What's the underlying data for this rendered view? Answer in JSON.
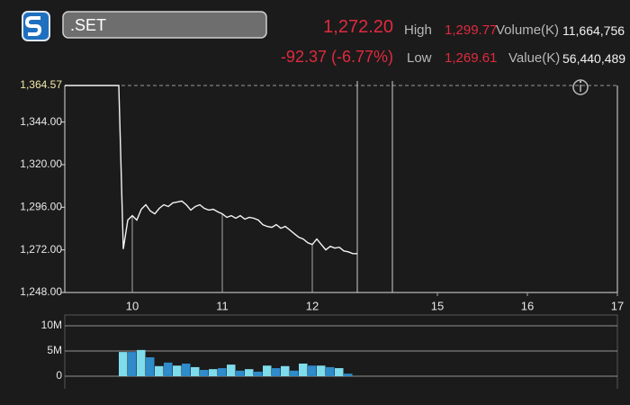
{
  "header": {
    "symbol": ".SET",
    "last": "1,272.20",
    "change": "-92.37 (-6.77%)",
    "high_label": "High",
    "high": "1,299.77",
    "low_label": "Low",
    "low": "1,269.61",
    "volume_label": "Volume(K)",
    "volume": "11,664,756",
    "value_label": "Value(K)",
    "value": "56,440,489"
  },
  "chart_data": [
    {
      "type": "line",
      "color": "#f4f4f4",
      "x": [
        9.25,
        9.85,
        9.9,
        9.95,
        10.0,
        10.05,
        10.1,
        10.15,
        10.2,
        10.25,
        10.3,
        10.35,
        10.4,
        10.45,
        10.5,
        10.55,
        10.6,
        10.65,
        10.7,
        10.75,
        10.8,
        10.85,
        10.9,
        10.95,
        11.0,
        11.05,
        11.1,
        11.15,
        11.2,
        11.25,
        11.3,
        11.35,
        11.4,
        11.45,
        11.5,
        11.55,
        11.6,
        11.65,
        11.7,
        11.75,
        11.8,
        11.85,
        11.9,
        11.95,
        12.0,
        12.05,
        12.1,
        12.15,
        12.2,
        12.25,
        12.3,
        12.35,
        12.4,
        12.45,
        12.5
      ],
      "values": [
        1364.57,
        1364.57,
        1272.5,
        1288.8,
        1291.3,
        1288.8,
        1294.9,
        1297.4,
        1293.9,
        1292.3,
        1295.4,
        1297.4,
        1296.4,
        1298.5,
        1299.0,
        1299.5,
        1297.4,
        1294.4,
        1296.4,
        1297.4,
        1295.4,
        1294.4,
        1294.9,
        1293.4,
        1292.3,
        1290.3,
        1291.3,
        1289.8,
        1291.3,
        1289.3,
        1290.3,
        1289.8,
        1288.8,
        1286.2,
        1285.2,
        1284.7,
        1286.2,
        1284.2,
        1285.2,
        1283.2,
        1281.1,
        1279.1,
        1278.1,
        1276.0,
        1275.0,
        1278.1,
        1275.0,
        1272.0,
        1274.0,
        1273.0,
        1273.5,
        1271.4,
        1270.9,
        1269.9,
        1269.9
      ],
      "reference": {
        "value": 1364.57,
        "label": "1,364.57"
      },
      "xlim": [
        9.25,
        17
      ],
      "x_break": [
        12.5,
        14.5
      ],
      "xticks": [
        10,
        11,
        12,
        15,
        16,
        17
      ],
      "ylim": [
        1248,
        1364.57
      ],
      "yticks": [
        {
          "value": 1248,
          "label": "1,248.00"
        },
        {
          "value": 1272,
          "label": "1,272.00"
        },
        {
          "value": 1296,
          "label": "1,296.00"
        },
        {
          "value": 1320,
          "label": "1,320.00"
        },
        {
          "value": 1344,
          "label": "1,344.00"
        }
      ]
    },
    {
      "type": "bar",
      "bar_colors": [
        "#7fdcec",
        "#2f8bc9"
      ],
      "x": [
        9.9,
        10.0,
        10.1,
        10.2,
        10.3,
        10.4,
        10.5,
        10.6,
        10.7,
        10.8,
        10.9,
        11.0,
        11.1,
        11.2,
        11.3,
        11.4,
        11.5,
        11.6,
        11.7,
        11.8,
        11.9,
        12.0,
        12.1,
        12.2,
        12.3,
        12.4
      ],
      "values": [
        4800000,
        4800000,
        5200000,
        3750000,
        2000000,
        2700000,
        2100000,
        2500000,
        1800000,
        1250000,
        1400000,
        1600000,
        2300000,
        1100000,
        1400000,
        900000,
        2100000,
        1600000,
        2000000,
        1100000,
        2500000,
        2100000,
        2100000,
        1800000,
        1600000,
        500000
      ],
      "xlim": [
        9.25,
        17
      ],
      "x_break": [
        12.5,
        14.5
      ],
      "ylim": [
        0,
        10000000
      ],
      "yticks": [
        0,
        {
          "value": 5000000,
          "label": "5M"
        },
        {
          "value": 10000000,
          "label": "10M"
        }
      ]
    }
  ]
}
